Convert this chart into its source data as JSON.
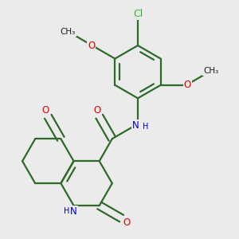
{
  "bg_color": "#ebebeb",
  "bond_color": "#2d6b28",
  "bond_width": 1.6,
  "atom_colors": {
    "O": "#e00000",
    "N": "#0000cc",
    "Cl": "#2db82d",
    "C": "#1a1a1a",
    "H": "#333333"
  },
  "font_size": 8.5,
  "fig_size": [
    3.0,
    3.0
  ],
  "dpi": 100
}
